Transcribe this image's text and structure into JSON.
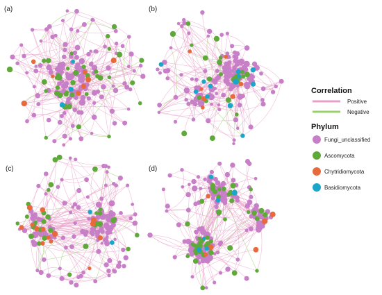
{
  "colors": {
    "positive_edge": "#e8a0c8",
    "negative_edge": "#9ad06a",
    "fungi_unclassified": "#c77fc7",
    "ascomycota": "#5fa83a",
    "chytridiomycota": "#e8693a",
    "basidiomycota": "#1aa6c8"
  },
  "panels": [
    {
      "label": "(a)",
      "counts": {
        "fungi_unclassified": 150,
        "ascomycota": 38,
        "chytridiomycota": 8,
        "basidiomycota": 3
      }
    },
    {
      "label": "(b)",
      "counts": {
        "fungi_unclassified": 140,
        "ascomycota": 26,
        "chytridiomycota": 7,
        "basidiomycota": 12
      }
    },
    {
      "label": "(c)",
      "counts": {
        "fungi_unclassified": 150,
        "ascomycota": 30,
        "chytridiomycota": 14,
        "basidiomycota": 2
      }
    },
    {
      "label": "(d)",
      "counts": {
        "fungi_unclassified": 170,
        "ascomycota": 45,
        "chytridiomycota": 6,
        "basidiomycota": 6
      }
    }
  ],
  "legend": {
    "correlation_title": "Correlation",
    "positive_label": "Positive",
    "negative_label": "Negative",
    "phylum_title": "Phylum",
    "phyla": [
      {
        "label": "Fungi_unclassified",
        "color_key": "fungi_unclassified"
      },
      {
        "label": "Ascomycota",
        "color_key": "ascomycota"
      },
      {
        "label": "Chytridiomycota",
        "color_key": "chytridiomycota"
      },
      {
        "label": "Basidiomycota",
        "color_key": "basidiomycota"
      }
    ]
  }
}
